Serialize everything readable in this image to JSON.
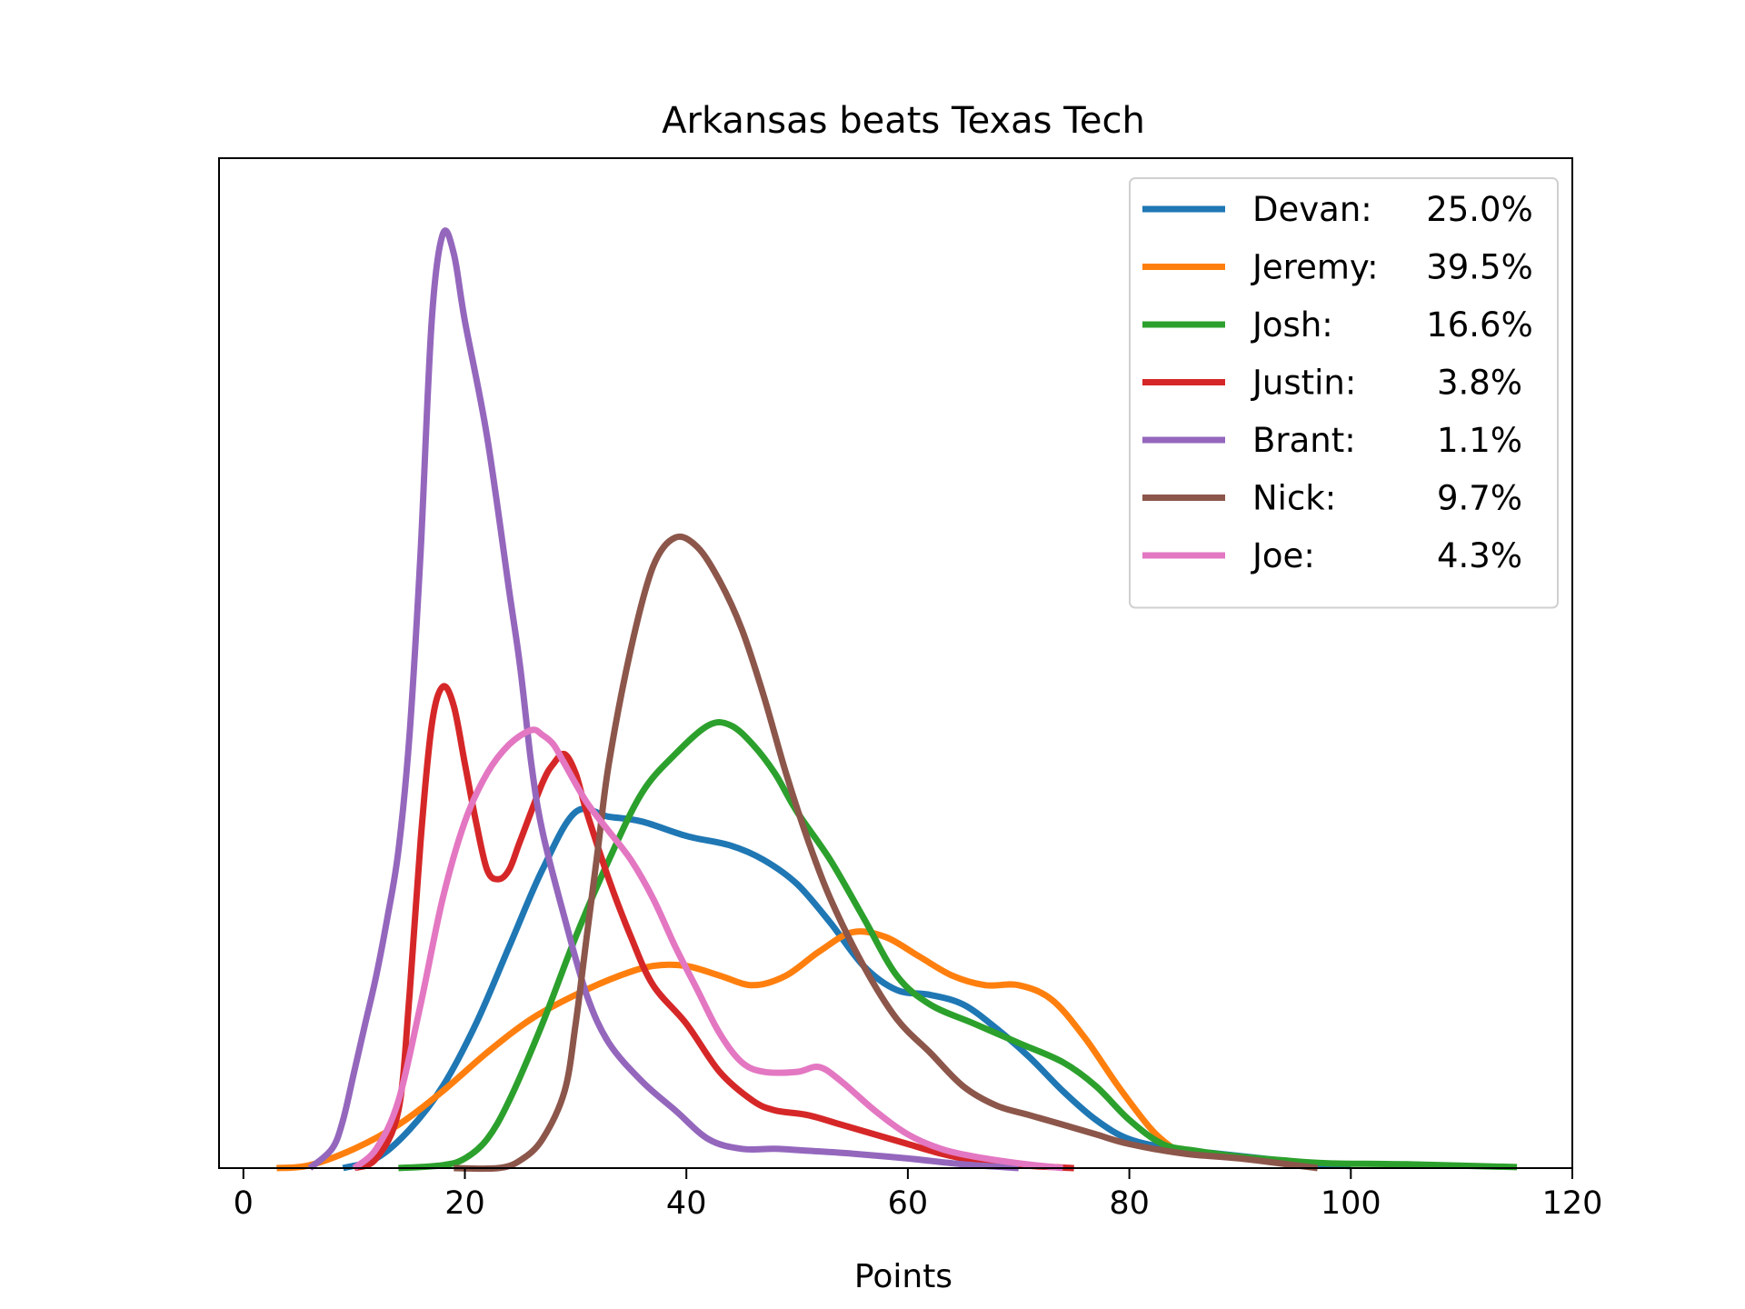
{
  "chart_data": {
    "type": "line",
    "title": "Arkansas beats Texas Tech",
    "xlabel": "Points",
    "ylabel": "",
    "xlim": [
      -2.2,
      120
    ],
    "ylim": [
      0,
      1
    ],
    "x_ticks": [
      0,
      20,
      40,
      60,
      80,
      100,
      120
    ],
    "x_tick_labels": [
      "0",
      "20",
      "40",
      "60",
      "80",
      "100",
      "120"
    ],
    "y_ticks_visible": false,
    "grid": false,
    "legend": {
      "position": "top-right",
      "entries": [
        {
          "name": "Devan:",
          "value": "25.0%"
        },
        {
          "name": "Jeremy:",
          "value": "39.5%"
        },
        {
          "name": "Josh:",
          "value": "16.6%"
        },
        {
          "name": "Justin:",
          "value": "3.8%"
        },
        {
          "name": "Brant:",
          "value": "1.1%"
        },
        {
          "name": "Nick:",
          "value": "9.7%"
        },
        {
          "name": "Joe:",
          "value": "4.3%"
        }
      ]
    },
    "series": [
      {
        "name": "Devan:",
        "color": "#1f77b4",
        "points": [
          [
            9,
            0
          ],
          [
            12,
            0.01
          ],
          [
            15,
            0.04
          ],
          [
            18,
            0.085
          ],
          [
            21,
            0.15
          ],
          [
            24,
            0.23
          ],
          [
            27,
            0.31
          ],
          [
            30,
            0.37
          ],
          [
            33,
            0.365
          ],
          [
            36,
            0.36
          ],
          [
            40,
            0.345
          ],
          [
            44,
            0.335
          ],
          [
            47,
            0.32
          ],
          [
            50,
            0.295
          ],
          [
            53,
            0.255
          ],
          [
            56,
            0.21
          ],
          [
            59,
            0.185
          ],
          [
            62,
            0.18
          ],
          [
            65,
            0.17
          ],
          [
            68,
            0.145
          ],
          [
            71,
            0.115
          ],
          [
            74,
            0.08
          ],
          [
            77,
            0.05
          ],
          [
            80,
            0.03
          ],
          [
            84,
            0.02
          ],
          [
            88,
            0.015
          ],
          [
            92,
            0.01
          ],
          [
            96,
            0.005
          ],
          [
            100,
            0.002
          ]
        ]
      },
      {
        "name": "Jeremy:",
        "color": "#ff7f0e",
        "points": [
          [
            3,
            0
          ],
          [
            6,
            0.003
          ],
          [
            10,
            0.02
          ],
          [
            14,
            0.045
          ],
          [
            18,
            0.08
          ],
          [
            22,
            0.12
          ],
          [
            26,
            0.155
          ],
          [
            30,
            0.18
          ],
          [
            34,
            0.2
          ],
          [
            37,
            0.21
          ],
          [
            40,
            0.21
          ],
          [
            43,
            0.2
          ],
          [
            46,
            0.19
          ],
          [
            49,
            0.2
          ],
          [
            52,
            0.225
          ],
          [
            55,
            0.245
          ],
          [
            58,
            0.24
          ],
          [
            61,
            0.22
          ],
          [
            64,
            0.2
          ],
          [
            67,
            0.19
          ],
          [
            70,
            0.19
          ],
          [
            73,
            0.175
          ],
          [
            76,
            0.135
          ],
          [
            79,
            0.085
          ],
          [
            82,
            0.04
          ],
          [
            84,
            0.02
          ]
        ]
      },
      {
        "name": "Josh:",
        "color": "#2ca02c",
        "points": [
          [
            14,
            0
          ],
          [
            18,
            0.003
          ],
          [
            20,
            0.01
          ],
          [
            22,
            0.03
          ],
          [
            24,
            0.07
          ],
          [
            27,
            0.15
          ],
          [
            30,
            0.24
          ],
          [
            33,
            0.32
          ],
          [
            36,
            0.39
          ],
          [
            39,
            0.43
          ],
          [
            42,
            0.46
          ],
          [
            44,
            0.46
          ],
          [
            46,
            0.44
          ],
          [
            48,
            0.41
          ],
          [
            50,
            0.37
          ],
          [
            53,
            0.32
          ],
          [
            56,
            0.26
          ],
          [
            59,
            0.2
          ],
          [
            62,
            0.17
          ],
          [
            66,
            0.15
          ],
          [
            70,
            0.13
          ],
          [
            74,
            0.11
          ],
          [
            77,
            0.085
          ],
          [
            80,
            0.05
          ],
          [
            83,
            0.025
          ],
          [
            86,
            0.018
          ],
          [
            90,
            0.012
          ],
          [
            94,
            0.008
          ],
          [
            98,
            0.005
          ],
          [
            105,
            0.004
          ],
          [
            115,
            0.001
          ]
        ]
      },
      {
        "name": "Justin:",
        "color": "#d62728",
        "points": [
          [
            10,
            0
          ],
          [
            12,
            0.01
          ],
          [
            14,
            0.06
          ],
          [
            15,
            0.18
          ],
          [
            16,
            0.34
          ],
          [
            17,
            0.46
          ],
          [
            18,
            0.5
          ],
          [
            19,
            0.48
          ],
          [
            20,
            0.42
          ],
          [
            21,
            0.36
          ],
          [
            22,
            0.31
          ],
          [
            23,
            0.3
          ],
          [
            24,
            0.31
          ],
          [
            25,
            0.34
          ],
          [
            27,
            0.4
          ],
          [
            28,
            0.42
          ],
          [
            29,
            0.43
          ],
          [
            30,
            0.41
          ],
          [
            31,
            0.37
          ],
          [
            33,
            0.3
          ],
          [
            35,
            0.24
          ],
          [
            37,
            0.19
          ],
          [
            40,
            0.15
          ],
          [
            43,
            0.1
          ],
          [
            46,
            0.07
          ],
          [
            48,
            0.06
          ],
          [
            51,
            0.055
          ],
          [
            54,
            0.045
          ],
          [
            57,
            0.035
          ],
          [
            60,
            0.025
          ],
          [
            63,
            0.015
          ],
          [
            66,
            0.008
          ],
          [
            70,
            0.003
          ],
          [
            75,
            0
          ]
        ]
      },
      {
        "name": "Brant:",
        "color": "#9467bd",
        "points": [
          [
            6,
            0
          ],
          [
            8,
            0.02
          ],
          [
            9,
            0.05
          ],
          [
            10,
            0.1
          ],
          [
            11,
            0.15
          ],
          [
            12,
            0.2
          ],
          [
            13,
            0.26
          ],
          [
            14,
            0.33
          ],
          [
            15,
            0.45
          ],
          [
            16,
            0.64
          ],
          [
            17,
            0.88
          ],
          [
            18,
            0.97
          ],
          [
            19,
            0.95
          ],
          [
            20,
            0.88
          ],
          [
            22,
            0.76
          ],
          [
            24,
            0.6
          ],
          [
            25,
            0.52
          ],
          [
            26,
            0.42
          ],
          [
            27,
            0.35
          ],
          [
            29,
            0.26
          ],
          [
            31,
            0.18
          ],
          [
            33,
            0.13
          ],
          [
            36,
            0.09
          ],
          [
            39,
            0.06
          ],
          [
            42,
            0.03
          ],
          [
            45,
            0.02
          ],
          [
            48,
            0.02
          ],
          [
            51,
            0.018
          ],
          [
            55,
            0.015
          ],
          [
            60,
            0.01
          ],
          [
            65,
            0.004
          ],
          [
            70,
            0
          ]
        ]
      },
      {
        "name": "Nick:",
        "color": "#8c564b",
        "points": [
          [
            19,
            0
          ],
          [
            23,
            0
          ],
          [
            25,
            0.008
          ],
          [
            27,
            0.03
          ],
          [
            29,
            0.08
          ],
          [
            30,
            0.15
          ],
          [
            31,
            0.24
          ],
          [
            32,
            0.33
          ],
          [
            33,
            0.42
          ],
          [
            35,
            0.54
          ],
          [
            37,
            0.625
          ],
          [
            39,
            0.655
          ],
          [
            41,
            0.645
          ],
          [
            43,
            0.61
          ],
          [
            45,
            0.56
          ],
          [
            47,
            0.49
          ],
          [
            49,
            0.41
          ],
          [
            51,
            0.34
          ],
          [
            53,
            0.28
          ],
          [
            56,
            0.21
          ],
          [
            59,
            0.155
          ],
          [
            62,
            0.12
          ],
          [
            65,
            0.085
          ],
          [
            68,
            0.065
          ],
          [
            71,
            0.055
          ],
          [
            74,
            0.045
          ],
          [
            77,
            0.035
          ],
          [
            80,
            0.025
          ],
          [
            85,
            0.015
          ],
          [
            90,
            0.01
          ],
          [
            97,
            0
          ]
        ]
      },
      {
        "name": "Joe:",
        "color": "#e377c2",
        "points": [
          [
            10,
            0
          ],
          [
            12,
            0.02
          ],
          [
            14,
            0.07
          ],
          [
            16,
            0.17
          ],
          [
            18,
            0.28
          ],
          [
            20,
            0.36
          ],
          [
            22,
            0.41
          ],
          [
            24,
            0.44
          ],
          [
            26,
            0.455
          ],
          [
            27,
            0.45
          ],
          [
            28,
            0.44
          ],
          [
            29,
            0.42
          ],
          [
            31,
            0.38
          ],
          [
            33,
            0.35
          ],
          [
            35,
            0.32
          ],
          [
            37,
            0.28
          ],
          [
            39,
            0.23
          ],
          [
            41,
            0.185
          ],
          [
            43,
            0.14
          ],
          [
            45,
            0.11
          ],
          [
            47,
            0.1
          ],
          [
            50,
            0.1
          ],
          [
            52,
            0.105
          ],
          [
            54,
            0.09
          ],
          [
            57,
            0.06
          ],
          [
            60,
            0.035
          ],
          [
            63,
            0.02
          ],
          [
            66,
            0.012
          ],
          [
            70,
            0.005
          ],
          [
            74,
            0
          ]
        ]
      }
    ]
  }
}
